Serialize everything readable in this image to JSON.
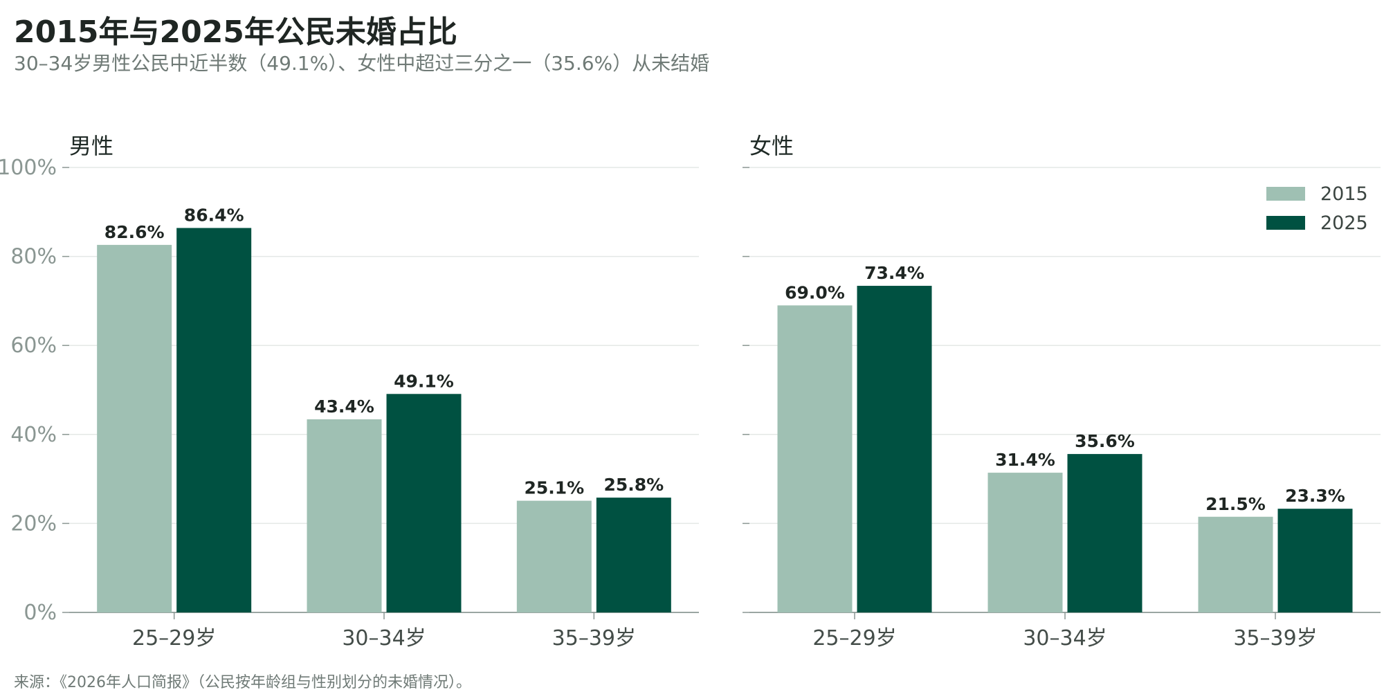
{
  "title": "2015年与2025年公民未婚占比",
  "subtitle": "30–34岁男性公民中近半数（49.1%）、女性中超过三分之一（35.6%）从未结婚",
  "source": "来源：《2026年人口简报》（公民按年龄组与性别划分的未婚情况）。",
  "colors": {
    "2015": "#9fc0b3",
    "2025": "#005141"
  },
  "chart_data": [
    {
      "type": "bar",
      "title": "男性",
      "categories": [
        "25–29岁",
        "30–34岁",
        "35–39岁"
      ],
      "series": [
        {
          "name": "2015",
          "values": [
            82.6,
            43.4,
            25.1
          ]
        },
        {
          "name": "2025",
          "values": [
            86.4,
            49.1,
            25.8
          ]
        }
      ],
      "data_labels": [
        [
          "82.6%",
          "43.4%",
          "25.1%"
        ],
        [
          "86.4%",
          "49.1%",
          "25.8%"
        ]
      ],
      "ylim": [
        0,
        100
      ],
      "yticks": [
        "0%",
        "20%",
        "40%",
        "60%",
        "80%",
        "100%"
      ],
      "grid": true,
      "legend": false
    },
    {
      "type": "bar",
      "title": "女性",
      "categories": [
        "25–29岁",
        "30–34岁",
        "35–39岁"
      ],
      "series": [
        {
          "name": "2015",
          "values": [
            69.0,
            31.4,
            21.5
          ]
        },
        {
          "name": "2025",
          "values": [
            73.4,
            35.6,
            23.3
          ]
        }
      ],
      "data_labels": [
        [
          "69.0%",
          "31.4%",
          "21.5%"
        ],
        [
          "73.4%",
          "35.6%",
          "23.3%"
        ]
      ],
      "ylim": [
        0,
        100
      ],
      "yticks": [
        "0%",
        "20%",
        "40%",
        "60%",
        "80%",
        "100%"
      ],
      "grid": true,
      "legend": "top-right"
    }
  ]
}
